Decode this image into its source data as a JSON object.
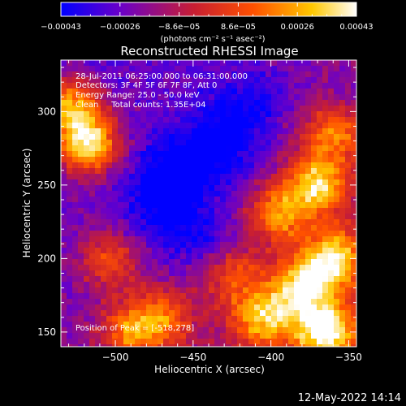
{
  "chart_data": {
    "type": "heatmap",
    "title": "Reconstructed RHESSI Image",
    "xlabel": "Heliocentric X (arcsec)",
    "ylabel": "Heliocentric Y (arcsec)",
    "xlim": [
      -535,
      -345
    ],
    "ylim": [
      140,
      335
    ],
    "x_ticks": [
      {
        "value": -500,
        "label": "−500"
      },
      {
        "value": -450,
        "label": "−450"
      },
      {
        "value": -400,
        "label": "−400"
      },
      {
        "value": -350,
        "label": "−350"
      }
    ],
    "y_ticks": [
      {
        "value": 150,
        "label": "150"
      },
      {
        "value": 200,
        "label": "200"
      },
      {
        "value": 250,
        "label": "250"
      },
      {
        "value": 300,
        "label": "300"
      }
    ],
    "annotations": [
      "28-Jul-2011 06:25:00.000 to 06:31:00.000",
      "Detectors: 3F 4F 5F 6F 7F 8F, Att 0",
      "Energy Range: 25.0 - 50.0 keV",
      "Clean     Total counts: 1.35E+04",
      "Position of Peak = [-518,278]"
    ],
    "colorbar": {
      "range": [
        -0.00043,
        0.00043
      ],
      "tick_labels": [
        "−0.00043",
        "−0.00026",
        "−8.6e−05",
        "8.6e−05",
        "0.00026",
        "0.00043"
      ],
      "units": "(photons cm⁻² s⁻¹ asec⁻²)",
      "colors": [
        "#0000ff",
        "#6a00c8",
        "#c81e32",
        "#ff5000",
        "#ffc800",
        "#ffffff"
      ]
    },
    "peak": {
      "x": -518,
      "y": 278
    },
    "sources": [
      {
        "x": -518,
        "y": 278,
        "amplitude": 1.0
      },
      {
        "x": -528,
        "y": 305,
        "amplitude": 0.75
      },
      {
        "x": -490,
        "y": 150,
        "amplitude": 0.55
      },
      {
        "x": -470,
        "y": 160,
        "amplitude": 0.5
      },
      {
        "x": -505,
        "y": 200,
        "amplitude": 0.45
      },
      {
        "x": -365,
        "y": 150,
        "amplitude": 0.9
      },
      {
        "x": -380,
        "y": 180,
        "amplitude": 0.75
      },
      {
        "x": -360,
        "y": 200,
        "amplitude": 0.8
      },
      {
        "x": -370,
        "y": 250,
        "amplitude": 0.8
      },
      {
        "x": -395,
        "y": 230,
        "amplitude": 0.6
      },
      {
        "x": -405,
        "y": 160,
        "amplitude": 0.7
      },
      {
        "x": -360,
        "y": 285,
        "amplitude": 0.55
      },
      {
        "x": -425,
        "y": 190,
        "amplitude": 0.45
      }
    ],
    "holes": [
      {
        "x": -460,
        "y": 260,
        "amplitude": 0.9
      },
      {
        "x": -430,
        "y": 280,
        "amplitude": 0.7
      },
      {
        "x": -470,
        "y": 230,
        "amplitude": 0.7
      },
      {
        "x": -415,
        "y": 305,
        "amplitude": 0.5
      },
      {
        "x": -440,
        "y": 210,
        "amplitude": 0.55
      }
    ]
  },
  "footer": {
    "date": "12-May-2022 14:14"
  }
}
